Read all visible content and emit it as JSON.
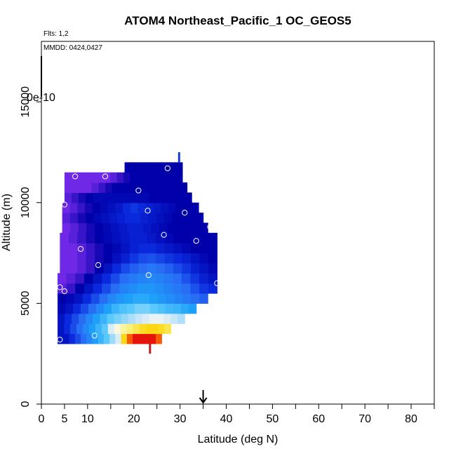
{
  "chart_data": {
    "type": "heatmap",
    "title": "ATOM4 Northeast_Pacific_1 OC_GEOS5",
    "annotations": {
      "flights": "Flts: 1,2",
      "dates": "MMDD: 0424,0427"
    },
    "xlabel": "Latitude (deg N)",
    "ylabel": "Altitude (m)",
    "xlim": [
      0,
      85
    ],
    "ylim": [
      0,
      18000
    ],
    "x_ticks": [
      0,
      5,
      10,
      20,
      30,
      40,
      50,
      60,
      70,
      80
    ],
    "x_minor_ticks": [
      15,
      25,
      35,
      45,
      55,
      65,
      75,
      85
    ],
    "y_ticks": [
      0,
      5000,
      10000,
      15000
    ],
    "colorbar_label": "0e-10",
    "grid": false,
    "marker_latitude": 35,
    "rows": [
      {
        "y0": 3000,
        "y1": 3500,
        "x0": 3.5,
        "x1": 26,
        "vals": [
          0.25,
          0.25,
          0.3,
          0.35,
          0.4,
          0.45,
          0.5,
          0.55,
          0.6,
          0.65,
          0.7,
          0.85,
          0.95,
          1.0,
          1.0,
          1.0,
          1.0,
          0.95
        ]
      },
      {
        "y0": 3500,
        "y1": 4000,
        "x0": 3.5,
        "x1": 28,
        "vals": [
          0.25,
          0.3,
          0.35,
          0.4,
          0.45,
          0.5,
          0.55,
          0.6,
          0.7,
          0.75,
          0.78,
          0.8,
          0.82,
          0.84,
          0.85,
          0.85,
          0.84,
          0.82
        ]
      },
      {
        "y0": 4000,
        "y1": 4500,
        "x0": 3.5,
        "x1": 31,
        "vals": [
          0.25,
          0.3,
          0.35,
          0.4,
          0.45,
          0.5,
          0.55,
          0.6,
          0.62,
          0.64,
          0.66,
          0.68,
          0.7,
          0.72,
          0.72,
          0.7,
          0.68,
          0.66
        ]
      },
      {
        "y0": 4500,
        "y1": 5000,
        "x0": 3.5,
        "x1": 33.5,
        "vals": [
          0.22,
          0.25,
          0.3,
          0.35,
          0.4,
          0.45,
          0.5,
          0.55,
          0.58,
          0.6,
          0.62,
          0.62,
          0.6,
          0.58,
          0.56,
          0.55,
          0.52,
          0.5
        ]
      },
      {
        "y0": 5000,
        "y1": 5500,
        "x0": 3.5,
        "x1": 36,
        "vals": [
          0.2,
          0.22,
          0.25,
          0.3,
          0.35,
          0.4,
          0.45,
          0.48,
          0.5,
          0.52,
          0.52,
          0.5,
          0.48,
          0.46,
          0.44,
          0.42,
          0.4,
          0.38
        ]
      },
      {
        "y0": 5500,
        "y1": 6000,
        "x0": 3.5,
        "x1": 38,
        "vals": [
          0.12,
          0.15,
          0.2,
          0.25,
          0.3,
          0.35,
          0.4,
          0.44,
          0.46,
          0.48,
          0.48,
          0.46,
          0.44,
          0.42,
          0.4,
          0.36,
          0.32,
          0.3
        ]
      },
      {
        "y0": 6000,
        "y1": 6500,
        "x0": 3.5,
        "x1": 38,
        "vals": [
          0.1,
          0.12,
          0.15,
          0.2,
          0.25,
          0.3,
          0.35,
          0.4,
          0.42,
          0.44,
          0.45,
          0.44,
          0.42,
          0.4,
          0.36,
          0.32,
          0.28,
          0.25
        ]
      },
      {
        "y0": 6500,
        "y1": 7000,
        "x0": 4,
        "x1": 38,
        "vals": [
          0.1,
          0.1,
          0.12,
          0.15,
          0.2,
          0.25,
          0.3,
          0.35,
          0.38,
          0.4,
          0.42,
          0.4,
          0.38,
          0.35,
          0.32,
          0.28,
          0.25,
          0.22
        ]
      },
      {
        "y0": 7000,
        "y1": 7500,
        "x0": 4,
        "x1": 38,
        "vals": [
          0.1,
          0.1,
          0.12,
          0.15,
          0.18,
          0.2,
          0.24,
          0.28,
          0.32,
          0.35,
          0.36,
          0.34,
          0.32,
          0.3,
          0.28,
          0.25,
          0.22,
          0.2
        ]
      },
      {
        "y0": 7500,
        "y1": 8000,
        "x0": 4,
        "x1": 38,
        "vals": [
          0.1,
          0.1,
          0.12,
          0.15,
          0.18,
          0.2,
          0.22,
          0.25,
          0.28,
          0.3,
          0.3,
          0.28,
          0.26,
          0.24,
          0.22,
          0.2,
          0.2,
          0.2
        ]
      },
      {
        "y0": 8000,
        "y1": 8500,
        "x0": 4,
        "x1": 38,
        "vals": [
          0.1,
          0.12,
          0.15,
          0.18,
          0.2,
          0.22,
          0.24,
          0.26,
          0.28,
          0.28,
          0.26,
          0.24,
          0.22,
          0.2,
          0.2,
          0.2,
          0.2,
          0.2
        ]
      },
      {
        "y0": 8500,
        "y1": 9000,
        "x0": 4.5,
        "x1": 36,
        "vals": [
          0.1,
          0.12,
          0.15,
          0.18,
          0.2,
          0.22,
          0.24,
          0.26,
          0.28,
          0.28,
          0.26,
          0.24,
          0.22,
          0.2,
          0.2,
          0.2,
          0.2,
          0.2
        ]
      },
      {
        "y0": 9000,
        "y1": 9500,
        "x0": 4.5,
        "x1": 35,
        "vals": [
          0.12,
          0.15,
          0.18,
          0.2,
          0.22,
          0.24,
          0.26,
          0.28,
          0.3,
          0.3,
          0.28,
          0.26,
          0.24,
          0.22,
          0.2,
          0.2,
          0.2,
          0.2
        ]
      },
      {
        "y0": 9500,
        "y1": 10000,
        "x0": 4.5,
        "x1": 34,
        "vals": [
          0.1,
          0.12,
          0.15,
          0.18,
          0.2,
          0.22,
          0.24,
          0.26,
          0.3,
          0.32,
          0.3,
          0.28,
          0.26,
          0.24,
          0.22,
          0.2,
          0.2,
          0.2
        ]
      },
      {
        "y0": 10000,
        "y1": 10500,
        "x0": 5,
        "x1": 32.5,
        "vals": [
          0.12,
          0.15,
          0.18,
          0.2,
          0.22,
          0.22,
          0.22,
          0.22,
          0.22,
          0.22,
          0.22,
          0.22,
          0.2,
          0.2,
          0.2,
          0.2,
          0.2,
          0.2
        ]
      },
      {
        "y0": 10500,
        "y1": 11000,
        "x0": 5,
        "x1": 31.5,
        "vals": [
          0.1,
          0.1,
          0.1,
          0.1,
          0.12,
          0.15,
          0.18,
          0.2,
          0.2,
          0.2,
          0.2,
          0.2,
          0.2,
          0.2,
          0.2,
          0.2,
          0.2,
          0.2
        ]
      },
      {
        "y0": 11000,
        "y1": 11500,
        "x0": 5,
        "x1": 30.5,
        "vals": [
          0.1,
          0.1,
          0.1,
          0.1,
          0.1,
          0.1,
          0.1,
          0.12,
          0.15,
          0.18,
          0.2,
          0.2,
          0.2,
          0.2,
          0.2,
          0.2,
          0.2,
          0.2
        ]
      },
      {
        "y0": 11500,
        "y1": 12000,
        "x0": 18,
        "x1": 30.5,
        "vals": [
          0.2,
          0.2,
          0.2,
          0.2,
          0.2,
          0.2,
          0.2,
          0.2
        ]
      }
    ],
    "flight_points": [
      [
        4,
        3200
      ],
      [
        11.5,
        3400
      ],
      [
        4,
        5800
      ],
      [
        5,
        5600
      ],
      [
        8.5,
        7700
      ],
      [
        12.3,
        6900
      ],
      [
        23.2,
        6400
      ],
      [
        26.5,
        8400
      ],
      [
        33.5,
        8100
      ],
      [
        38,
        6000
      ],
      [
        36.5,
        8800
      ],
      [
        31,
        9500
      ],
      [
        23,
        9600
      ],
      [
        5,
        9900
      ],
      [
        21,
        10600
      ],
      [
        7.3,
        11300
      ],
      [
        13.8,
        11300
      ],
      [
        27.3,
        11700
      ],
      [
        39,
        8500
      ]
    ],
    "profile_marks": [
      {
        "lat": 29.8,
        "y0": 12000,
        "y1": 12500,
        "color": "#1a3bd8"
      },
      {
        "lat": 23.5,
        "y0": 2500,
        "y1": 3000,
        "color": "#b22222"
      }
    ]
  }
}
